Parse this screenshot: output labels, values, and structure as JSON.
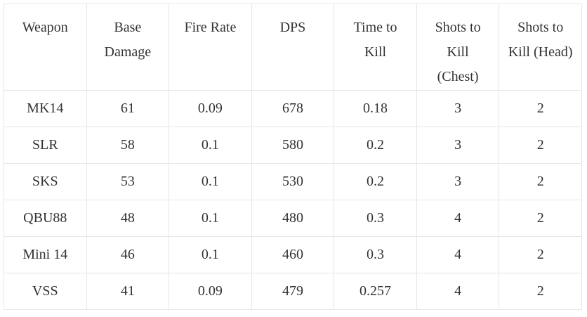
{
  "table": {
    "header": [
      "Weapon",
      "Base Damage",
      "Fire Rate",
      "DPS",
      "Time to Kill",
      "Shots to Kill (Chest)",
      "Shots to Kill (Head)"
    ],
    "rows": [
      [
        "MK14",
        "61",
        "0.09",
        "678",
        "0.18",
        "3",
        "2"
      ],
      [
        "SLR",
        "58",
        "0.1",
        "580",
        "0.2",
        "3",
        "2"
      ],
      [
        "SKS",
        "53",
        "0.1",
        "530",
        "0.2",
        "3",
        "2"
      ],
      [
        "QBU88",
        "48",
        "0.1",
        "480",
        "0.3",
        "4",
        "2"
      ],
      [
        "Mini 14",
        "46",
        "0.1",
        "460",
        "0.3",
        "4",
        "2"
      ],
      [
        "VSS",
        "41",
        "0.09",
        "479",
        "0.257",
        "4",
        "2"
      ]
    ]
  }
}
